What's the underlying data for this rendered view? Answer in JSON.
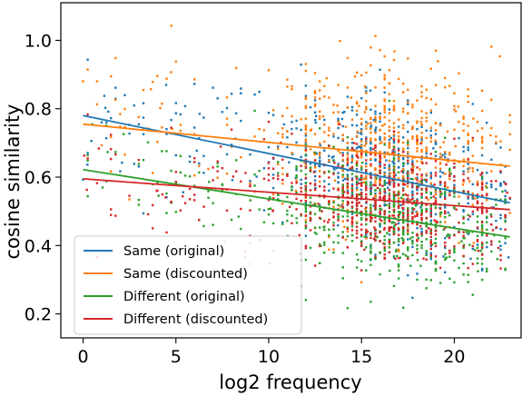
{
  "chart_data": {
    "type": "scatter",
    "xlabel": "log2 frequency",
    "ylabel": "cosine similarity",
    "xlim": [
      -1.2,
      23.6
    ],
    "ylim": [
      0.13,
      1.11
    ],
    "xticks": [
      0,
      5,
      10,
      15,
      20
    ],
    "yticks": [
      0.2,
      0.4,
      0.6,
      0.8,
      1.0
    ],
    "xtick_labels": [
      "0",
      "5",
      "10",
      "15",
      "20"
    ],
    "ytick_labels": [
      "0.2",
      "0.4",
      "0.6",
      "0.8",
      "1.0"
    ],
    "grid": false,
    "legend_position": "lower-left",
    "series": [
      {
        "name": "Same (original)",
        "color": "#1f77b4",
        "fit": {
          "x": [
            0,
            23
          ],
          "y": [
            0.78,
            0.525
          ]
        },
        "center": 0.06,
        "spread": 0.1
      },
      {
        "name": "Same (discounted)",
        "color": "#ff7f0e",
        "fit": {
          "x": [
            0,
            23
          ],
          "y": [
            0.755,
            0.632
          ]
        },
        "center": 0.08,
        "spread": 0.12
      },
      {
        "name": "Different (original)",
        "color": "#2ca02c",
        "fit": {
          "x": [
            0,
            23
          ],
          "y": [
            0.622,
            0.425
          ]
        },
        "center": -0.01,
        "spread": 0.09
      },
      {
        "name": "Different (discounted)",
        "color": "#d62728",
        "fit": {
          "x": [
            0,
            23
          ],
          "y": [
            0.595,
            0.505
          ]
        },
        "center": -0.02,
        "spread": 0.08
      }
    ]
  }
}
